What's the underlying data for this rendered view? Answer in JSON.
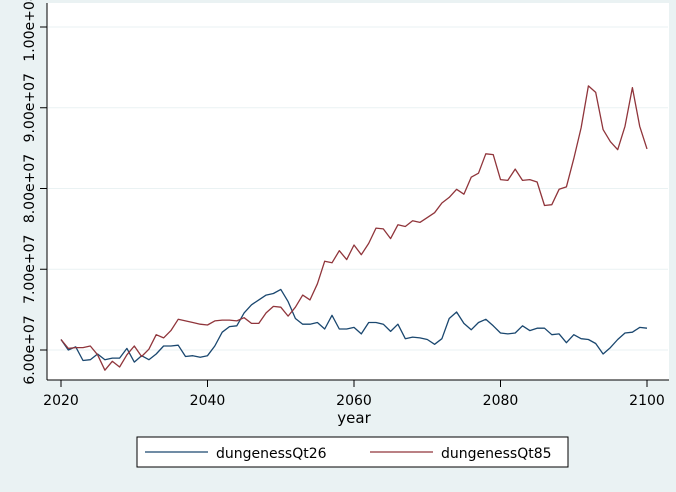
{
  "chart_data": {
    "type": "line",
    "title": "",
    "xlabel": "year",
    "ylabel": "",
    "xlim": [
      2020,
      2100
    ],
    "ylim": [
      60000000,
      100000000
    ],
    "x_ticks": [
      2020,
      2040,
      2060,
      2080,
      2100
    ],
    "x_tick_labels": [
      "2020",
      "2040",
      "2060",
      "2080",
      "2100"
    ],
    "y_ticks": [
      60000000,
      70000000,
      80000000,
      90000000,
      100000000
    ],
    "y_tick_labels": [
      "6.00e+07",
      "7.00e+07",
      "8.00e+07",
      "9.00e+07",
      "1.00e+08"
    ],
    "grid": "horizontal",
    "legend_position": "bottom",
    "colors": {
      "background": "#eaf2f3",
      "plot_area": "#ffffff",
      "grid": "#eaf2f3"
    },
    "x": [
      2020,
      2021,
      2022,
      2023,
      2024,
      2025,
      2026,
      2027,
      2028,
      2029,
      2030,
      2031,
      2032,
      2033,
      2034,
      2035,
      2036,
      2037,
      2038,
      2039,
      2040,
      2041,
      2042,
      2043,
      2044,
      2045,
      2046,
      2047,
      2048,
      2049,
      2050,
      2051,
      2052,
      2053,
      2054,
      2055,
      2056,
      2057,
      2058,
      2059,
      2060,
      2061,
      2062,
      2063,
      2064,
      2065,
      2066,
      2067,
      2068,
      2069,
      2070,
      2071,
      2072,
      2073,
      2074,
      2075,
      2076,
      2077,
      2078,
      2079,
      2080,
      2081,
      2082,
      2083,
      2084,
      2085,
      2086,
      2087,
      2088,
      2089,
      2090,
      2091,
      2092,
      2093,
      2094,
      2095,
      2096,
      2097,
      2098,
      2099,
      2100
    ],
    "series": [
      {
        "name": "dungenessQt26",
        "color": "#1a476f",
        "values": [
          61.3,
          60.0,
          60.4,
          58.7,
          58.8,
          59.5,
          58.8,
          59.0,
          59.0,
          60.2,
          58.5,
          59.3,
          58.8,
          59.5,
          60.5,
          60.5,
          60.6,
          59.2,
          59.3,
          59.1,
          59.3,
          60.5,
          62.2,
          62.9,
          63.0,
          64.6,
          65.6,
          66.2,
          66.8,
          67.0,
          67.5,
          66.0,
          63.9,
          63.2,
          63.2,
          63.4,
          62.6,
          64.3,
          62.6,
          62.6,
          62.8,
          62.0,
          63.4,
          63.4,
          63.2,
          62.3,
          63.2,
          61.4,
          61.6,
          61.5,
          61.3,
          60.7,
          61.4,
          63.9,
          64.7,
          63.3,
          62.5,
          63.4,
          63.8,
          63.0,
          62.1,
          62.0,
          62.1,
          63.0,
          62.4,
          62.7,
          62.7,
          61.9,
          62.0,
          60.9,
          61.9,
          61.4,
          61.3,
          60.8,
          59.5,
          60.3,
          61.3,
          62.1,
          62.2,
          62.8,
          62.7
        ]
      },
      {
        "name": "dungenessQt85",
        "color": "#90353b",
        "values": [
          61.3,
          60.2,
          60.3,
          60.3,
          60.5,
          59.4,
          57.5,
          58.6,
          57.9,
          59.4,
          60.5,
          59.2,
          60.1,
          61.9,
          61.5,
          62.4,
          63.8,
          63.6,
          63.4,
          63.2,
          63.1,
          63.6,
          63.7,
          63.7,
          63.6,
          64.0,
          63.3,
          63.3,
          64.6,
          65.4,
          65.3,
          64.2,
          65.3,
          66.8,
          66.2,
          68.2,
          71.0,
          70.8,
          72.3,
          71.2,
          73.0,
          71.8,
          73.2,
          75.1,
          75.0,
          73.8,
          75.5,
          75.3,
          76.0,
          75.8,
          76.4,
          77.0,
          78.2,
          78.9,
          79.9,
          79.3,
          81.4,
          81.9,
          84.3,
          84.2,
          81.1,
          81.0,
          82.4,
          81.0,
          81.1,
          80.8,
          77.9,
          78.0,
          79.9,
          80.2,
          83.7,
          87.5,
          92.7,
          91.9,
          87.3,
          85.8,
          84.8,
          87.7,
          92.5,
          87.7,
          84.9
        ]
      }
    ]
  }
}
